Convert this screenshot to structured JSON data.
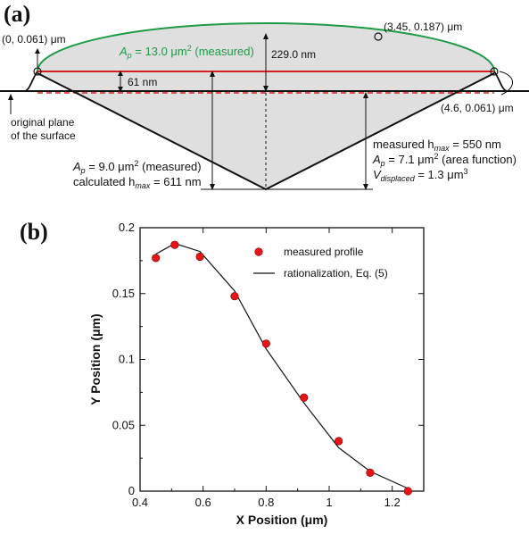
{
  "panel_a": {
    "label": "(a)",
    "point_left": "(0, 0.061) μm",
    "point_top": "(3.45, 0.187) μm",
    "point_right": "(4.6, 0.061) μm",
    "ap_measured_top": {
      "prefix": "A",
      "sub": "p",
      "text": " = 13.0 μm",
      "sup": "2",
      "suffix": " (measured)"
    },
    "height_label": "229.0 nm",
    "offset_label": "61 nm",
    "original_plane": [
      "original plane",
      "of the surface"
    ],
    "left_block": {
      "line1": {
        "prefix": "A",
        "sub": "p",
        "text": " = 9.0 μm",
        "sup": "2",
        "suffix": " (measured)"
      },
      "line2": {
        "prefix": "calculated h",
        "sub": "max",
        "suffix": " = 611 nm"
      }
    },
    "right_block": {
      "line1": {
        "prefix": "measured h",
        "sub": "max",
        "suffix": " = 550 nm"
      },
      "line2": {
        "prefix": "A",
        "sub": "p",
        "text": " = 7.1 μm",
        "sup": "2",
        "suffix": " (area function)"
      },
      "line3": {
        "prefix": "V",
        "sub": "displaced",
        "text": " = 1.3 μm",
        "sup": "3"
      }
    },
    "colors": {
      "green": "#1f9a47",
      "red": "#d42020",
      "fill": "#d9d9d9"
    }
  },
  "panel_b_label": "(b)",
  "chart_data": {
    "type": "scatter",
    "xlabel": "X Position (μm)",
    "ylabel": "Y Position (μm)",
    "xlim": [
      0.4,
      1.3
    ],
    "ylim": [
      0,
      0.2
    ],
    "xticks": [
      "0.4",
      "0.6",
      "0.8",
      "1",
      "1.2"
    ],
    "yticks": [
      "0",
      "0.05",
      "0.1",
      "0.15",
      "0.2"
    ],
    "legend_position": "top-right",
    "series": [
      {
        "name": "measured profile",
        "kind": "markers",
        "color": "#e8141a",
        "x": [
          0.45,
          0.51,
          0.59,
          0.7,
          0.8,
          0.92,
          1.03,
          1.13,
          1.25
        ],
        "y": [
          0.177,
          0.187,
          0.178,
          0.148,
          0.112,
          0.071,
          0.038,
          0.014,
          0.0
        ]
      },
      {
        "name": "rationalization, Eq. (5)",
        "kind": "line",
        "color": "#111111",
        "x": [
          0.45,
          0.51,
          0.59,
          0.7,
          0.8,
          0.92,
          1.03,
          1.13,
          1.25
        ],
        "y": [
          0.18,
          0.188,
          0.182,
          0.152,
          0.108,
          0.067,
          0.033,
          0.015,
          0.002
        ]
      }
    ]
  }
}
